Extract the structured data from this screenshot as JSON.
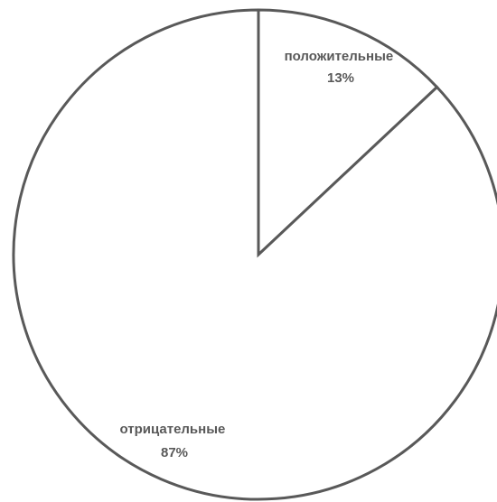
{
  "chart_data": {
    "type": "pie",
    "title": "",
    "slices": [
      {
        "label": "положительные",
        "value": 13,
        "value_label": "13%"
      },
      {
        "label": "отрицательные",
        "value": 87,
        "value_label": "87%"
      }
    ],
    "start_angle": "12 o'clock",
    "direction": "clockwise",
    "legend": "none",
    "colors": {
      "slice_fill": "#ffffff",
      "slice_stroke": "#595959",
      "label_text": "#595959"
    }
  }
}
